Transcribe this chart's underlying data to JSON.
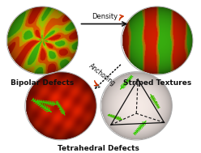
{
  "background_color": "#ffffff",
  "label_bipolar": {
    "text": "Bipolar Defects",
    "fontsize": 6.5,
    "fontweight": "bold"
  },
  "label_striped": {
    "text": "Striped Textures",
    "fontsize": 6.5,
    "fontweight": "bold"
  },
  "label_tetrahedral": {
    "text": "Tetrahedral Defects",
    "fontsize": 6.5,
    "fontweight": "bold"
  },
  "density_label": "Density",
  "anchoring_label": "Anchoring",
  "arrow_color": "#111111",
  "red_arrow_color": "#cc3300",
  "text_color": "#111111"
}
